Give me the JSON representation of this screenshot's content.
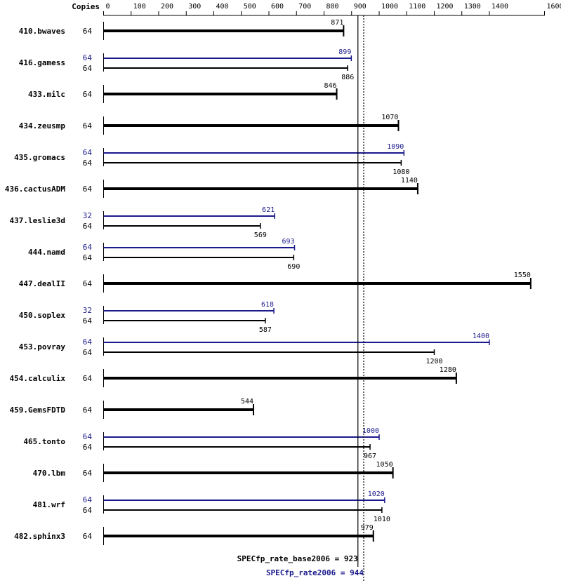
{
  "chart_data": {
    "type": "bar",
    "orientation": "horizontal",
    "copies_header": "Copies",
    "x_ticks": [
      0,
      100,
      200,
      300,
      400,
      500,
      600,
      700,
      800,
      900,
      1000,
      1100,
      1200,
      1300,
      1400,
      1600
    ],
    "xlim": [
      0,
      1600
    ],
    "grid": false,
    "colors": {
      "base": "#000000",
      "peak": "#1a1a8c"
    },
    "benchmarks": [
      {
        "name": "410.bwaves",
        "base": {
          "copies": "64",
          "value": 871,
          "label": "871"
        }
      },
      {
        "name": "416.gamess",
        "peak": {
          "copies": "64",
          "value": 899,
          "label": "899"
        },
        "base": {
          "copies": "64",
          "value": 886,
          "label": "886"
        }
      },
      {
        "name": "433.milc",
        "base": {
          "copies": "64",
          "value": 846,
          "label": "846"
        }
      },
      {
        "name": "434.zeusmp",
        "base": {
          "copies": "64",
          "value": 1070,
          "label": "1070"
        }
      },
      {
        "name": "435.gromacs",
        "peak": {
          "copies": "64",
          "value": 1090,
          "label": "1090"
        },
        "base": {
          "copies": "64",
          "value": 1080,
          "label": "1080"
        }
      },
      {
        "name": "436.cactusADM",
        "base": {
          "copies": "64",
          "value": 1140,
          "label": "1140"
        }
      },
      {
        "name": "437.leslie3d",
        "peak": {
          "copies": "32",
          "value": 621,
          "label": "621"
        },
        "base": {
          "copies": "64",
          "value": 569,
          "label": "569"
        }
      },
      {
        "name": "444.namd",
        "peak": {
          "copies": "64",
          "value": 693,
          "label": "693"
        },
        "base": {
          "copies": "64",
          "value": 690,
          "label": "690"
        }
      },
      {
        "name": "447.dealII",
        "base": {
          "copies": "64",
          "value": 1550,
          "label": "1550"
        }
      },
      {
        "name": "450.soplex",
        "peak": {
          "copies": "32",
          "value": 618,
          "label": "618"
        },
        "base": {
          "copies": "64",
          "value": 587,
          "label": "587"
        }
      },
      {
        "name": "453.povray",
        "peak": {
          "copies": "64",
          "value": 1400,
          "label": "1400"
        },
        "base": {
          "copies": "64",
          "value": 1200,
          "label": "1200"
        }
      },
      {
        "name": "454.calculix",
        "base": {
          "copies": "64",
          "value": 1280,
          "label": "1280"
        }
      },
      {
        "name": "459.GemsFDTD",
        "base": {
          "copies": "64",
          "value": 544,
          "label": "544"
        }
      },
      {
        "name": "465.tonto",
        "peak": {
          "copies": "64",
          "value": 1000,
          "label": "1000"
        },
        "base": {
          "copies": "64",
          "value": 967,
          "label": "967"
        }
      },
      {
        "name": "470.lbm",
        "base": {
          "copies": "64",
          "value": 1050,
          "label": "1050"
        }
      },
      {
        "name": "481.wrf",
        "peak": {
          "copies": "64",
          "value": 1020,
          "label": "1020"
        },
        "base": {
          "copies": "64",
          "value": 1010,
          "label": "1010"
        }
      },
      {
        "name": "482.sphinx3",
        "base": {
          "copies": "64",
          "value": 979,
          "label": "979"
        }
      }
    ],
    "reference_lines": {
      "base": {
        "label": "SPECfp_rate_base2006 = 923",
        "value": 923
      },
      "peak": {
        "label": "SPECfp_rate2006 = 944",
        "value": 944
      }
    }
  }
}
